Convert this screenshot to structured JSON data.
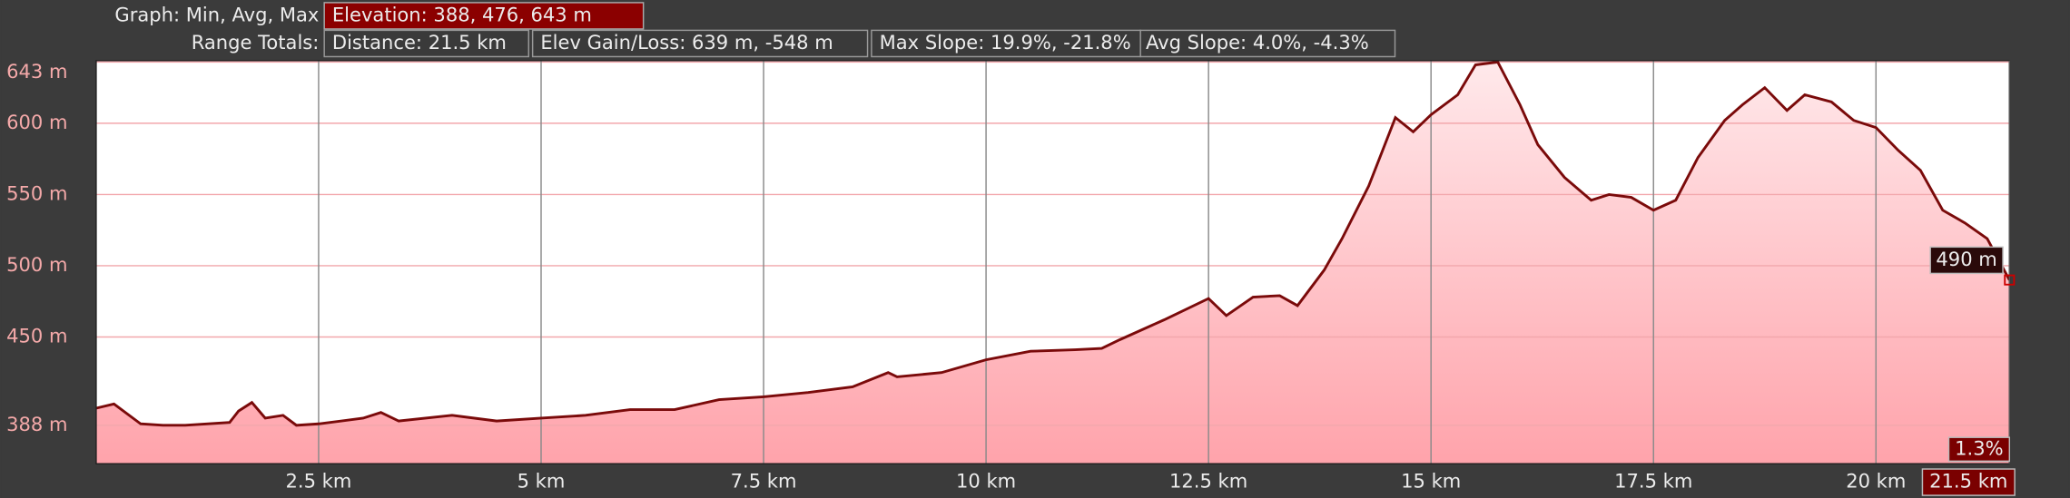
{
  "header": {
    "graph_label": "Graph: Min, Avg, Max",
    "elevation": "Elevation: 388, 476, 643 m",
    "range_label": "Range Totals:",
    "distance": "Distance: 21.5 km",
    "gain_loss": "Elev Gain/Loss: 639 m, -548 m",
    "max_slope": "Max Slope: 19.9%, -21.8%",
    "avg_slope": "Avg Slope: 4.0%, -4.3%"
  },
  "chart_data": {
    "type": "area",
    "color": "#7a0a0a",
    "x": [
      0,
      0.2,
      0.5,
      0.75,
      1.0,
      1.5,
      1.6,
      1.75,
      1.9,
      2.1,
      2.25,
      2.5,
      3.0,
      3.2,
      3.4,
      4.0,
      4.5,
      5.0,
      5.5,
      6.0,
      6.5,
      7.0,
      7.5,
      8.0,
      8.5,
      8.9,
      9.0,
      9.5,
      10.0,
      10.5,
      11.0,
      11.3,
      11.5,
      12.0,
      12.5,
      12.7,
      13.0,
      13.3,
      13.5,
      13.8,
      14.0,
      14.3,
      14.6,
      14.8,
      15.0,
      15.3,
      15.5,
      15.75,
      16.0,
      16.2,
      16.5,
      16.8,
      17.0,
      17.25,
      17.5,
      17.75,
      18.0,
      18.3,
      18.5,
      18.75,
      19.0,
      19.2,
      19.5,
      19.75,
      20.0,
      20.25,
      20.5,
      20.75,
      21.0,
      21.25,
      21.5
    ],
    "values": [
      400,
      403,
      389,
      388,
      388,
      390,
      398,
      404,
      393,
      395,
      388,
      389,
      393,
      397,
      391,
      395,
      391,
      393,
      395,
      399,
      399,
      406,
      408,
      411,
      415,
      425,
      422,
      425,
      434,
      440,
      441,
      442,
      448,
      462,
      477,
      465,
      478,
      479,
      472,
      497,
      519,
      556,
      604,
      594,
      606,
      620,
      641,
      643,
      613,
      585,
      562,
      546,
      550,
      548,
      539,
      546,
      576,
      602,
      613,
      625,
      609,
      620,
      615,
      602,
      597,
      581,
      567,
      539,
      530,
      519,
      490
    ],
    "xlim": [
      0,
      21.5
    ],
    "ylim": [
      361,
      644
    ],
    "xticks": [
      {
        "value": 2.5,
        "label": "2.5 km"
      },
      {
        "value": 5,
        "label": "5 km"
      },
      {
        "value": 7.5,
        "label": "7.5 km"
      },
      {
        "value": 10,
        "label": "10 km"
      },
      {
        "value": 12.5,
        "label": "12.5 km"
      },
      {
        "value": 15,
        "label": "15 km"
      },
      {
        "value": 17.5,
        "label": "17.5 km"
      },
      {
        "value": 20,
        "label": "20 km"
      }
    ],
    "yticks": [
      {
        "value": 388,
        "label": "388 m"
      },
      {
        "value": 450,
        "label": "450 m"
      },
      {
        "value": 500,
        "label": "500 m"
      },
      {
        "value": 550,
        "label": "550 m"
      },
      {
        "value": 600,
        "label": "600 m"
      },
      {
        "value": 643,
        "label": "643 m"
      }
    ],
    "grid": true,
    "cursor": {
      "x": {
        "value": 21.5,
        "label": "21.5 km"
      },
      "y": {
        "value": 490,
        "label": "490 m"
      },
      "slope": {
        "value": 1.3,
        "label": "1.3%"
      }
    }
  }
}
